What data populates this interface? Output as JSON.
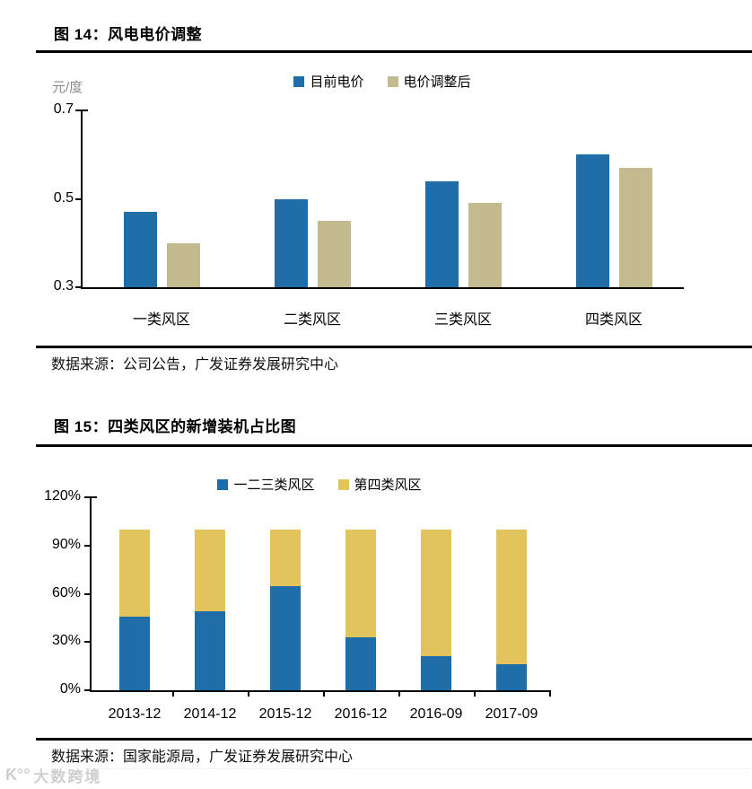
{
  "figure14": {
    "title": "图 14：风电电价调整",
    "unit": "元/度",
    "source": "数据来源：公司公告，广发证券发展研究中心"
  },
  "figure15": {
    "title": "图 15：四类风区的新增装机占比图",
    "source": "数据来源：国家能源局，广发证券发展研究中心"
  },
  "watermark": {
    "logo": "Ƙ°°",
    "text": "大数跨境"
  },
  "colors": {
    "blue": "#1F6EA7",
    "tan": "#C4BA90",
    "yellow": "#E3C45C",
    "axis": "#000000"
  },
  "chart_data": [
    {
      "type": "bar",
      "stacked": false,
      "title": "图 14：风电电价调整",
      "ylabel": "元/度",
      "xlabel": "",
      "categories": [
        "一类风区",
        "二类风区",
        "三类风区",
        "四类风区"
      ],
      "series": [
        {
          "name": "目前电价",
          "color": "#1F6EA7",
          "values": [
            0.47,
            0.5,
            0.54,
            0.6
          ]
        },
        {
          "name": "电价调整后",
          "color": "#C4BA90",
          "values": [
            0.4,
            0.45,
            0.49,
            0.57
          ]
        }
      ],
      "ylim": [
        0.3,
        0.7
      ],
      "yticks": [
        0.3,
        0.5,
        0.7
      ],
      "ytick_labels": [
        "0.3",
        "0.5",
        "0.7"
      ],
      "grid": false,
      "legend_position": "top"
    },
    {
      "type": "bar",
      "stacked": true,
      "title": "图 15：四类风区的新增装机占比图",
      "ylabel": "",
      "xlabel": "",
      "categories": [
        "2013-12",
        "2014-12",
        "2015-12",
        "2016-12",
        "2016-09",
        "2017-09"
      ],
      "series": [
        {
          "name": "一二三类风区",
          "color": "#1F6EA7",
          "values": [
            46,
            49,
            65,
            33,
            21,
            16
          ]
        },
        {
          "name": "第四类风区",
          "color": "#E3C45C",
          "values": [
            54,
            51,
            35,
            67,
            79,
            84
          ]
        }
      ],
      "ylim": [
        0,
        120
      ],
      "yticks": [
        0,
        30,
        60,
        90,
        120
      ],
      "ytick_labels": [
        "0%",
        "30%",
        "60%",
        "90%",
        "120%"
      ],
      "grid": false,
      "legend_position": "top"
    }
  ]
}
